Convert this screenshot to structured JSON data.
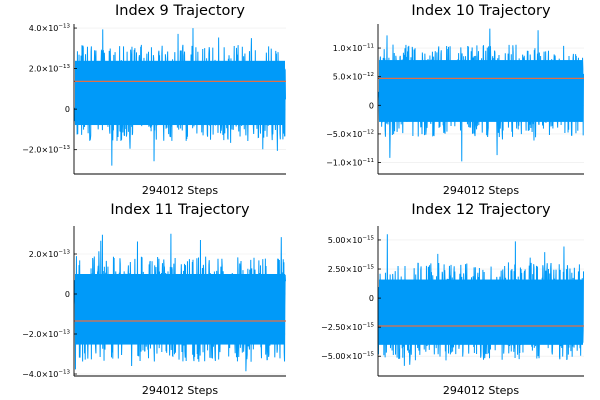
{
  "chart_data": [
    {
      "type": "line",
      "title": "Index 9 Trajectory",
      "xlabel": "294012 Steps",
      "ylabel": "",
      "x_count": 294012,
      "ylim": [
        -3.2e-13,
        4.2e-13
      ],
      "yticks": [
        {
          "value": 4e-13,
          "mant": "4.0×10",
          "exp": "−13"
        },
        {
          "value": 2e-13,
          "mant": "2.0×10",
          "exp": "−13"
        },
        {
          "value": 0,
          "mant": "0",
          "exp": ""
        },
        {
          "value": -2e-13,
          "mant": "−2.0×10",
          "exp": "−13"
        }
      ],
      "series": [
        {
          "values": {
            "center": 8e-14,
            "band_low": -1.4e-13,
            "band_high": 3e-13,
            "min": -3.2e-13,
            "max": 4e-13
          }
        }
      ],
      "mean_line": 1.37e-13,
      "colors": {
        "series": "#009af9",
        "mean": "#e26f46"
      },
      "grid": true,
      "legend": "none"
    },
    {
      "type": "line",
      "title": "Index 10 Trajectory",
      "xlabel": "294012 Steps",
      "ylabel": "",
      "x_count": 294012,
      "ylim": [
        -1.2e-11,
        1.42e-11
      ],
      "yticks": [
        {
          "value": 1e-11,
          "mant": "1.0×10",
          "exp": "−11"
        },
        {
          "value": 5e-12,
          "mant": "5.0×10",
          "exp": "−12"
        },
        {
          "value": 0,
          "mant": "0",
          "exp": ""
        },
        {
          "value": -5e-12,
          "mant": "−5.0×10",
          "exp": "−12"
        },
        {
          "value": -1e-11,
          "mant": "−1.0×10",
          "exp": "−11"
        }
      ],
      "series": [
        {
          "values": {
            "center": 2.5e-12,
            "band_low": -5e-12,
            "band_high": 1e-11,
            "min": -1.1e-11,
            "max": 1.35e-11
          }
        }
      ],
      "mean_line": 4.7e-12,
      "colors": {
        "series": "#009af9",
        "mean": "#e26f46"
      },
      "grid": true,
      "legend": "none"
    },
    {
      "type": "line",
      "title": "Index 11 Trajectory",
      "xlabel": "294012 Steps",
      "ylabel": "",
      "x_count": 294012,
      "ylim": [
        -4.1e-13,
        3.4e-13
      ],
      "yticks": [
        {
          "value": 2e-13,
          "mant": "2.0×10",
          "exp": "−13"
        },
        {
          "value": 0,
          "mant": "0",
          "exp": ""
        },
        {
          "value": -2e-13,
          "mant": "−2.0×10",
          "exp": "−13"
        },
        {
          "value": -4e-13,
          "mant": "−4.0×10",
          "exp": "−13"
        }
      ],
      "series": [
        {
          "values": {
            "center": -8e-14,
            "band_low": -3.2e-13,
            "band_high": 1.7e-13,
            "min": -4e-13,
            "max": 3.2e-13
          }
        }
      ],
      "mean_line": -1.35e-13,
      "colors": {
        "series": "#009af9",
        "mean": "#e26f46"
      },
      "grid": true,
      "legend": "none"
    },
    {
      "type": "line",
      "title": "Index 12 Trajectory",
      "xlabel": "294012 Steps",
      "ylabel": "",
      "x_count": 294012,
      "ylim": [
        -6.7e-15,
        6.2e-15
      ],
      "yticks": [
        {
          "value": 5e-15,
          "mant": "5.00×10",
          "exp": "−15"
        },
        {
          "value": 2.5e-15,
          "mant": "2.50×10",
          "exp": "−15"
        },
        {
          "value": 0,
          "mant": "0",
          "exp": ""
        },
        {
          "value": -2.5e-15,
          "mant": "−2.50×10",
          "exp": "−15"
        },
        {
          "value": -5e-15,
          "mant": "−5.00×10",
          "exp": "−15"
        }
      ],
      "series": [
        {
          "values": {
            "center": -1.5e-15,
            "band_low": -5e-15,
            "band_high": 2.8e-15,
            "min": -6.6e-15,
            "max": 5.6e-15
          }
        }
      ],
      "mean_line": -2.4e-15,
      "colors": {
        "series": "#009af9",
        "mean": "#e26f46"
      },
      "grid": true,
      "legend": "none"
    }
  ]
}
